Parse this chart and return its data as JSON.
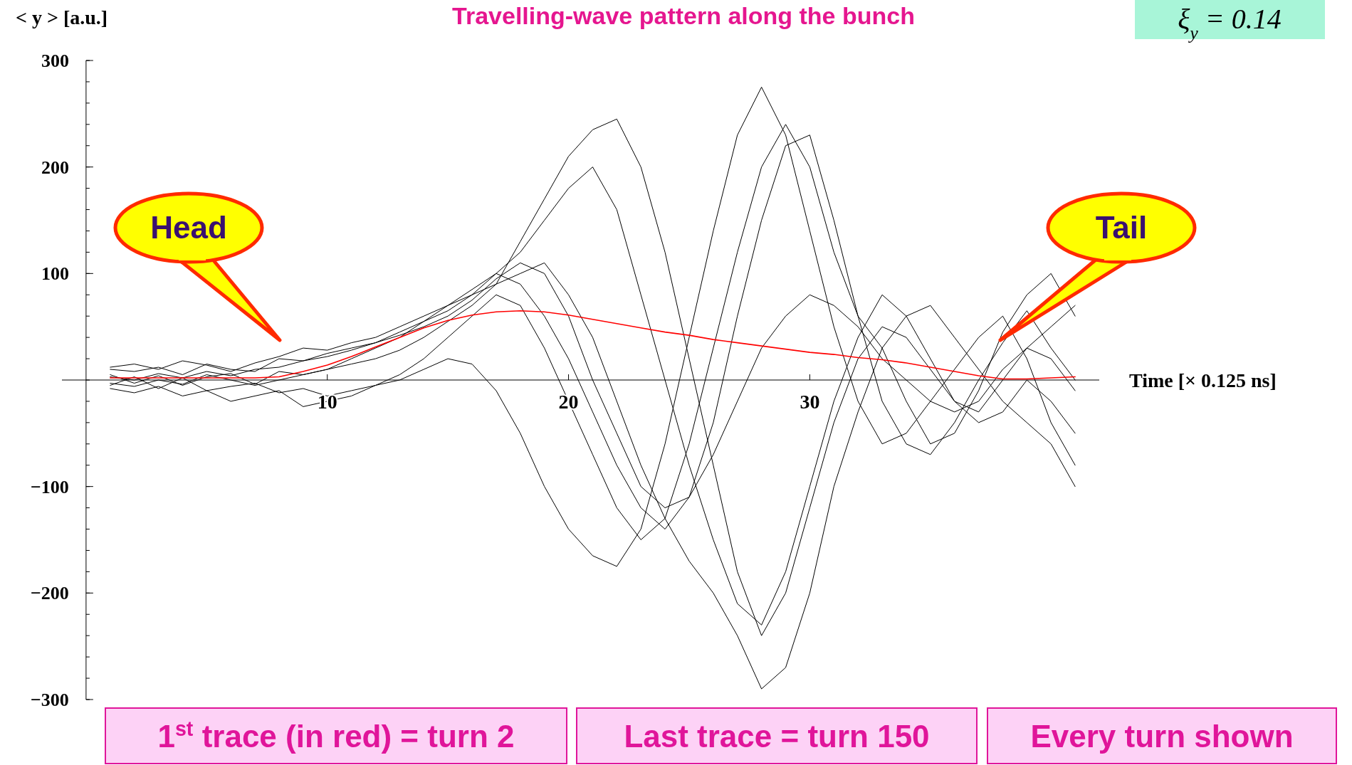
{
  "chart_data": {
    "type": "line",
    "title": "Travelling-wave pattern along the bunch",
    "ylabel": "< y > [a.u.]",
    "xlabel": "Time [× 0.125 ns]",
    "x": [
      1,
      2,
      3,
      4,
      5,
      6,
      7,
      8,
      9,
      10,
      11,
      12,
      13,
      14,
      15,
      16,
      17,
      18,
      19,
      20,
      21,
      22,
      23,
      24,
      25,
      26,
      27,
      28,
      29,
      30,
      31,
      32,
      33,
      34,
      35,
      36,
      37,
      38,
      39,
      40,
      41
    ],
    "series": [
      {
        "color": "#ff0000",
        "values": [
          2,
          2,
          2,
          2,
          2,
          2,
          2,
          3,
          8,
          14,
          22,
          31,
          40,
          49,
          56,
          61,
          64,
          65,
          64,
          61,
          57,
          53,
          49,
          45,
          42,
          38,
          35,
          32,
          29,
          26,
          24,
          21,
          19,
          16,
          12,
          8,
          4,
          1,
          1,
          2,
          3
        ]
      },
      {
        "color": "#000000",
        "values": [
          5,
          -3,
          4,
          -5,
          3,
          6,
          -4,
          8,
          5,
          10,
          15,
          20,
          28,
          40,
          55,
          70,
          90,
          130,
          170,
          210,
          235,
          245,
          200,
          120,
          20,
          -80,
          -180,
          -240,
          -200,
          -120,
          -40,
          20,
          50,
          40,
          10,
          -20,
          -30,
          0,
          30,
          20,
          -10
        ]
      },
      {
        "color": "#000000",
        "values": [
          -5,
          3,
          -8,
          2,
          -10,
          -6,
          -3,
          -12,
          -8,
          -15,
          -10,
          -5,
          0,
          10,
          20,
          15,
          -10,
          -50,
          -100,
          -140,
          -165,
          -175,
          -140,
          -60,
          40,
          140,
          230,
          275,
          230,
          140,
          50,
          -20,
          -60,
          -50,
          -20,
          10,
          40,
          60,
          20,
          -40,
          -80
        ]
      },
      {
        "color": "#000000",
        "values": [
          10,
          8,
          12,
          5,
          15,
          10,
          8,
          20,
          18,
          25,
          30,
          35,
          45,
          55,
          70,
          80,
          90,
          100,
          110,
          80,
          40,
          -20,
          -80,
          -130,
          -170,
          -200,
          -240,
          -290,
          -270,
          -200,
          -100,
          -30,
          30,
          60,
          70,
          40,
          10,
          -20,
          -40,
          -60,
          -100
        ]
      },
      {
        "color": "#000000",
        "values": [
          -8,
          -12,
          -6,
          -15,
          -10,
          -20,
          -15,
          -10,
          -25,
          -20,
          -15,
          -5,
          5,
          20,
          40,
          60,
          80,
          70,
          30,
          -20,
          -70,
          -120,
          -150,
          -130,
          -60,
          30,
          120,
          200,
          240,
          200,
          120,
          60,
          30,
          -20,
          -60,
          -50,
          -10,
          45,
          80,
          100,
          60
        ]
      },
      {
        "color": "#000000",
        "values": [
          3,
          0,
          6,
          2,
          8,
          4,
          10,
          12,
          18,
          22,
          28,
          35,
          42,
          50,
          60,
          75,
          95,
          110,
          100,
          60,
          0,
          -50,
          -100,
          -120,
          -110,
          -70,
          -20,
          30,
          60,
          80,
          70,
          50,
          20,
          0,
          -20,
          -30,
          -20,
          10,
          30,
          50,
          70
        ]
      },
      {
        "color": "#000000",
        "values": [
          -3,
          -6,
          0,
          -4,
          5,
          0,
          -5,
          0,
          5,
          10,
          20,
          30,
          40,
          55,
          65,
          80,
          100,
          90,
          60,
          20,
          -30,
          -80,
          -120,
          -140,
          -110,
          -40,
          60,
          150,
          220,
          230,
          150,
          60,
          -20,
          -60,
          -70,
          -40,
          0,
          35,
          65,
          30,
          0
        ]
      },
      {
        "color": "#000000",
        "values": [
          12,
          15,
          10,
          18,
          14,
          8,
          16,
          22,
          30,
          28,
          35,
          40,
          50,
          60,
          70,
          85,
          100,
          120,
          150,
          180,
          200,
          160,
          80,
          0,
          -80,
          -150,
          -210,
          -230,
          -180,
          -100,
          -20,
          40,
          80,
          60,
          20,
          -20,
          -40,
          -30,
          0,
          -20,
          -50
        ]
      }
    ],
    "xlim": [
      -1,
      42
    ],
    "ylim": [
      -300,
      300
    ],
    "xticks": [
      10,
      20,
      30
    ],
    "yticks": [
      {
        "value": -300,
        "label": "−300"
      },
      {
        "value": -200,
        "label": "−200"
      },
      {
        "value": -100,
        "label": "−100"
      },
      100,
      200,
      300
    ],
    "grid": false,
    "annotations": [
      "ξ$_{y}$ = 0.14",
      "1$^{st}$ trace (in red) = turn 2",
      "Last trace = turn 150",
      "Every turn shown",
      "Head",
      "Tail"
    ]
  }
}
